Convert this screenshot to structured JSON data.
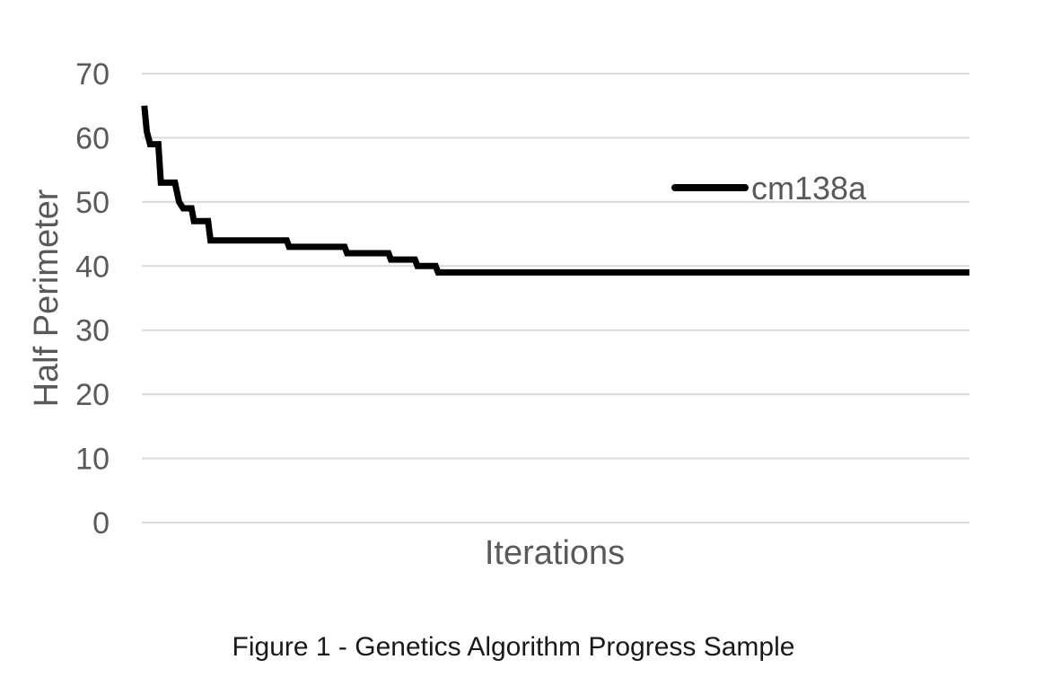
{
  "chart_data": {
    "type": "line",
    "title": "",
    "caption": "Figure 1 - Genetics Algorithm Progress Sample",
    "xlabel": "Iterations",
    "ylabel": "Half Perimeter",
    "ylim": [
      0,
      70
    ],
    "yticks": [
      "0",
      "10",
      "20",
      "30",
      "40",
      "50",
      "60",
      "70"
    ],
    "xlim": [
      0,
      1000
    ],
    "x_tick_labels": [],
    "grid": true,
    "legend_placement": "top-right",
    "series": [
      {
        "name": "cm138a",
        "color": "#000000",
        "points": [
          [
            3,
            65
          ],
          [
            6,
            61
          ],
          [
            10,
            59
          ],
          [
            20,
            59
          ],
          [
            23,
            53
          ],
          [
            40,
            53
          ],
          [
            45,
            50
          ],
          [
            50,
            49
          ],
          [
            60,
            49
          ],
          [
            63,
            47
          ],
          [
            80,
            47
          ],
          [
            83,
            44
          ],
          [
            175,
            44
          ],
          [
            178,
            43
          ],
          [
            245,
            43
          ],
          [
            248,
            42
          ],
          [
            298,
            42
          ],
          [
            301,
            41
          ],
          [
            330,
            41
          ],
          [
            333,
            40
          ],
          [
            355,
            40
          ],
          [
            358,
            39
          ],
          [
            1000,
            39
          ]
        ]
      }
    ]
  }
}
